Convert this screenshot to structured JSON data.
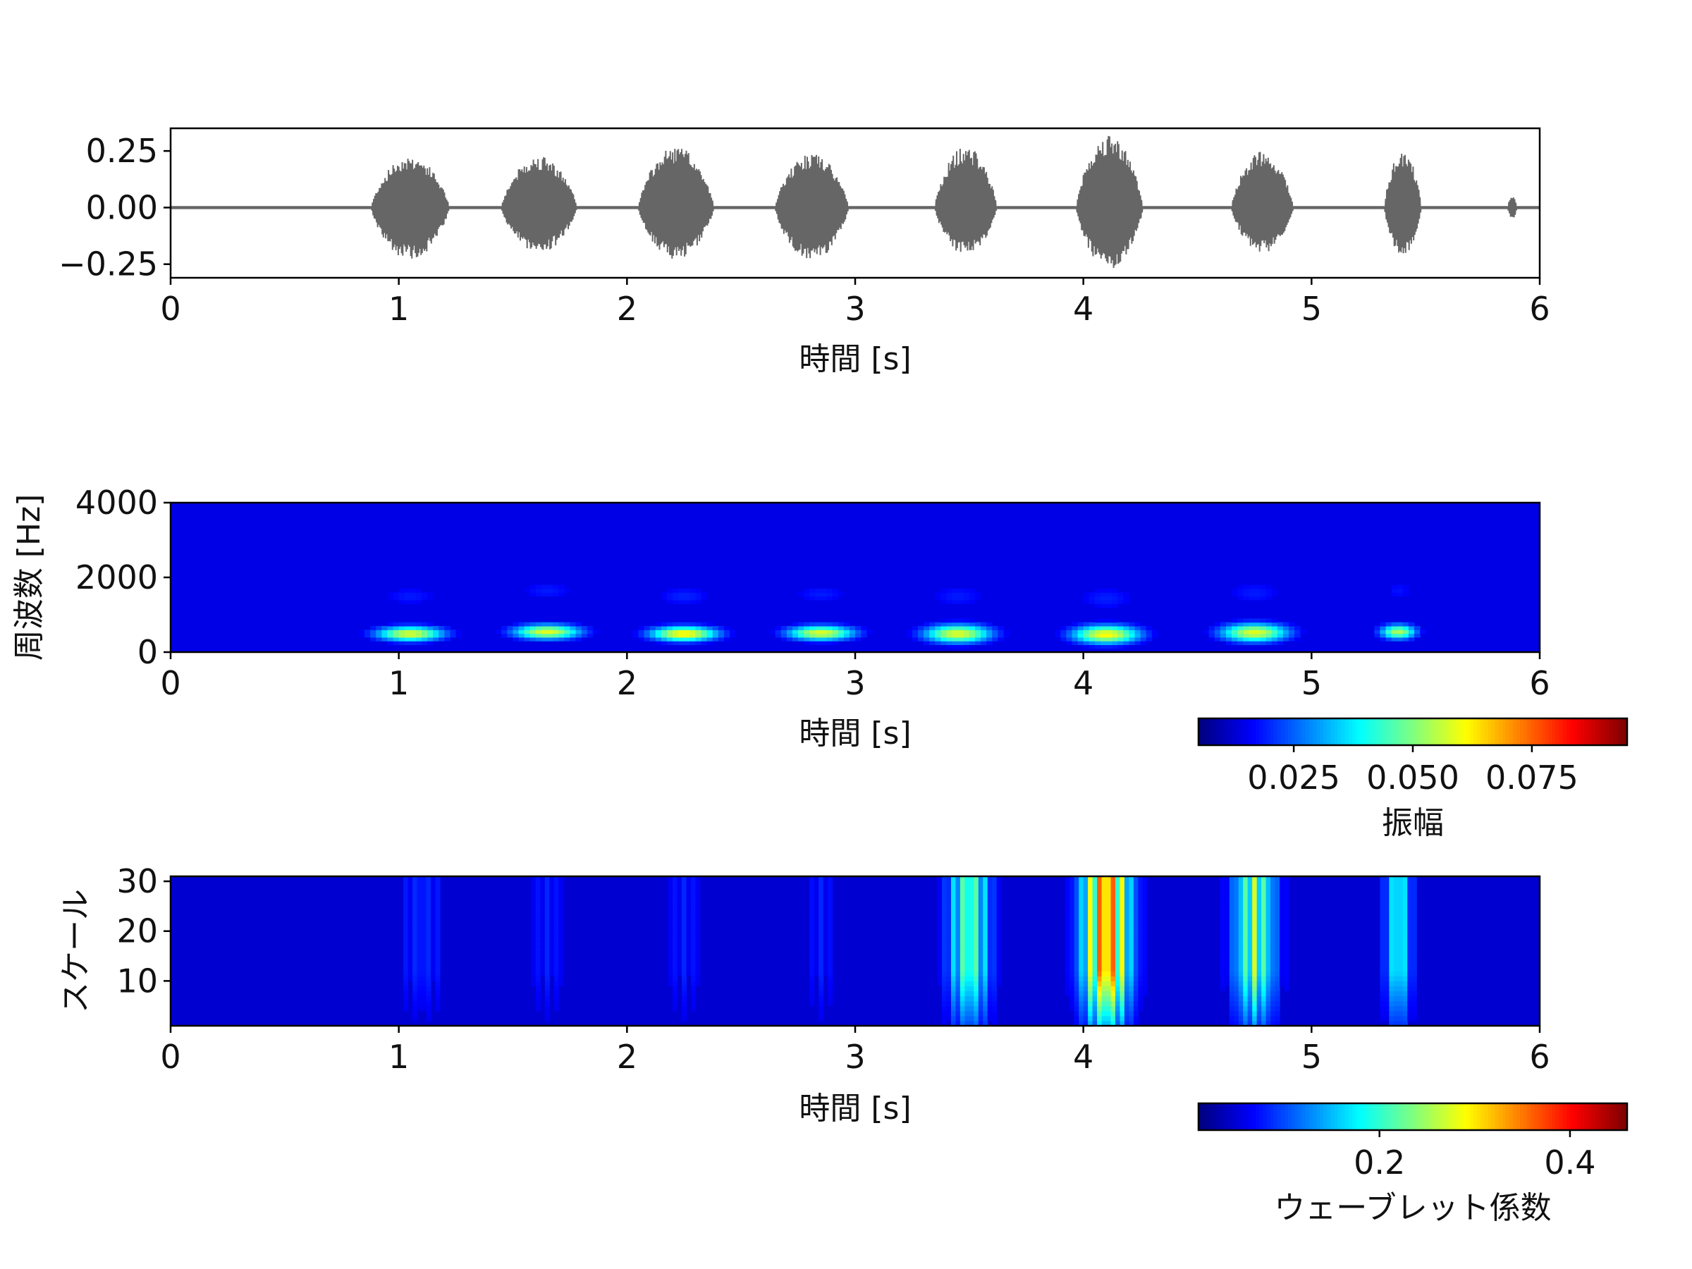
{
  "chart_data": [
    {
      "type": "line",
      "panel": "waveform",
      "xlabel": "時間 [s]",
      "ylabel": "",
      "xlim": [
        0,
        6
      ],
      "ylim": [
        -0.31,
        0.35
      ],
      "xticks": [
        "0",
        "1",
        "2",
        "3",
        "4",
        "5",
        "6"
      ],
      "yticks": [
        "0.25",
        "0.00",
        "−0.25"
      ],
      "ytick_values": [
        0.25,
        0.0,
        -0.25
      ],
      "line_color": "#666666",
      "noise_amplitude": 0.006,
      "bursts": [
        {
          "start": 0.88,
          "end": 1.22,
          "peak": 0.23,
          "low": -0.23
        },
        {
          "start": 1.45,
          "end": 1.78,
          "peak": 0.23,
          "low": -0.2
        },
        {
          "start": 2.05,
          "end": 2.38,
          "peak": 0.27,
          "low": -0.23
        },
        {
          "start": 2.65,
          "end": 2.97,
          "peak": 0.24,
          "low": -0.24
        },
        {
          "start": 3.35,
          "end": 3.62,
          "peak": 0.27,
          "low": -0.21
        },
        {
          "start": 3.97,
          "end": 4.26,
          "peak": 0.32,
          "low": -0.28
        },
        {
          "start": 4.65,
          "end": 4.92,
          "peak": 0.25,
          "low": -0.2
        },
        {
          "start": 5.32,
          "end": 5.48,
          "peak": 0.25,
          "low": -0.22
        },
        {
          "start": 5.86,
          "end": 5.9,
          "peak": 0.05,
          "low": -0.05
        }
      ]
    },
    {
      "type": "heatmap",
      "panel": "spectrogram",
      "xlabel": "時間 [s]",
      "ylabel": "周波数 [Hz]",
      "xlim": [
        0,
        6
      ],
      "ylim": [
        0,
        4000
      ],
      "xticks": [
        "0",
        "1",
        "2",
        "3",
        "4",
        "5",
        "6"
      ],
      "yticks": [
        "4000",
        "2000",
        "0"
      ],
      "ytick_values": [
        4000,
        2000,
        0
      ],
      "colormap": "jet",
      "hotspots": [
        {
          "t": 1.05,
          "f": 500,
          "dt": 0.15,
          "df": 200,
          "amp": 0.055
        },
        {
          "t": 1.65,
          "f": 550,
          "dt": 0.15,
          "df": 200,
          "amp": 0.055
        },
        {
          "t": 2.25,
          "f": 500,
          "dt": 0.15,
          "df": 200,
          "amp": 0.06
        },
        {
          "t": 2.85,
          "f": 520,
          "dt": 0.15,
          "df": 200,
          "amp": 0.055
        },
        {
          "t": 3.45,
          "f": 500,
          "dt": 0.15,
          "df": 250,
          "amp": 0.055
        },
        {
          "t": 4.1,
          "f": 480,
          "dt": 0.15,
          "df": 250,
          "amp": 0.058
        },
        {
          "t": 4.75,
          "f": 530,
          "dt": 0.15,
          "df": 250,
          "amp": 0.055
        },
        {
          "t": 5.38,
          "f": 550,
          "dt": 0.08,
          "df": 200,
          "amp": 0.05
        }
      ],
      "colorbar": {
        "label": "振幅",
        "ticks": [
          "0.025",
          "0.050",
          "0.075"
        ],
        "tick_values": [
          0.025,
          0.05,
          0.075
        ],
        "range": [
          0.005,
          0.095
        ]
      }
    },
    {
      "type": "heatmap",
      "panel": "scalogram",
      "xlabel": "時間 [s]",
      "ylabel": "スケール",
      "xlim": [
        0,
        6
      ],
      "ylim": [
        1,
        31
      ],
      "xticks": [
        "0",
        "1",
        "2",
        "3",
        "4",
        "5",
        "6"
      ],
      "yticks": [
        "30",
        "20",
        "10"
      ],
      "ytick_values": [
        30,
        20,
        10
      ],
      "colormap": "jet",
      "bands": [
        {
          "t": 1.1,
          "w": 0.2,
          "amp": 0.06
        },
        {
          "t": 1.65,
          "w": 0.2,
          "amp": 0.05
        },
        {
          "t": 2.25,
          "w": 0.2,
          "amp": 0.05
        },
        {
          "t": 2.85,
          "w": 0.15,
          "amp": 0.05
        },
        {
          "t": 3.5,
          "w": 0.16,
          "amp": 0.24
        },
        {
          "t": 4.1,
          "w": 0.18,
          "amp": 0.42
        },
        {
          "t": 4.75,
          "w": 0.16,
          "amp": 0.26
        },
        {
          "t": 5.38,
          "w": 0.1,
          "amp": 0.2
        }
      ],
      "colorbar": {
        "label": "ウェーブレット係数",
        "ticks": [
          "0.2",
          "0.4"
        ],
        "tick_values": [
          0.2,
          0.4
        ],
        "range": [
          0.01,
          0.46
        ]
      }
    }
  ]
}
